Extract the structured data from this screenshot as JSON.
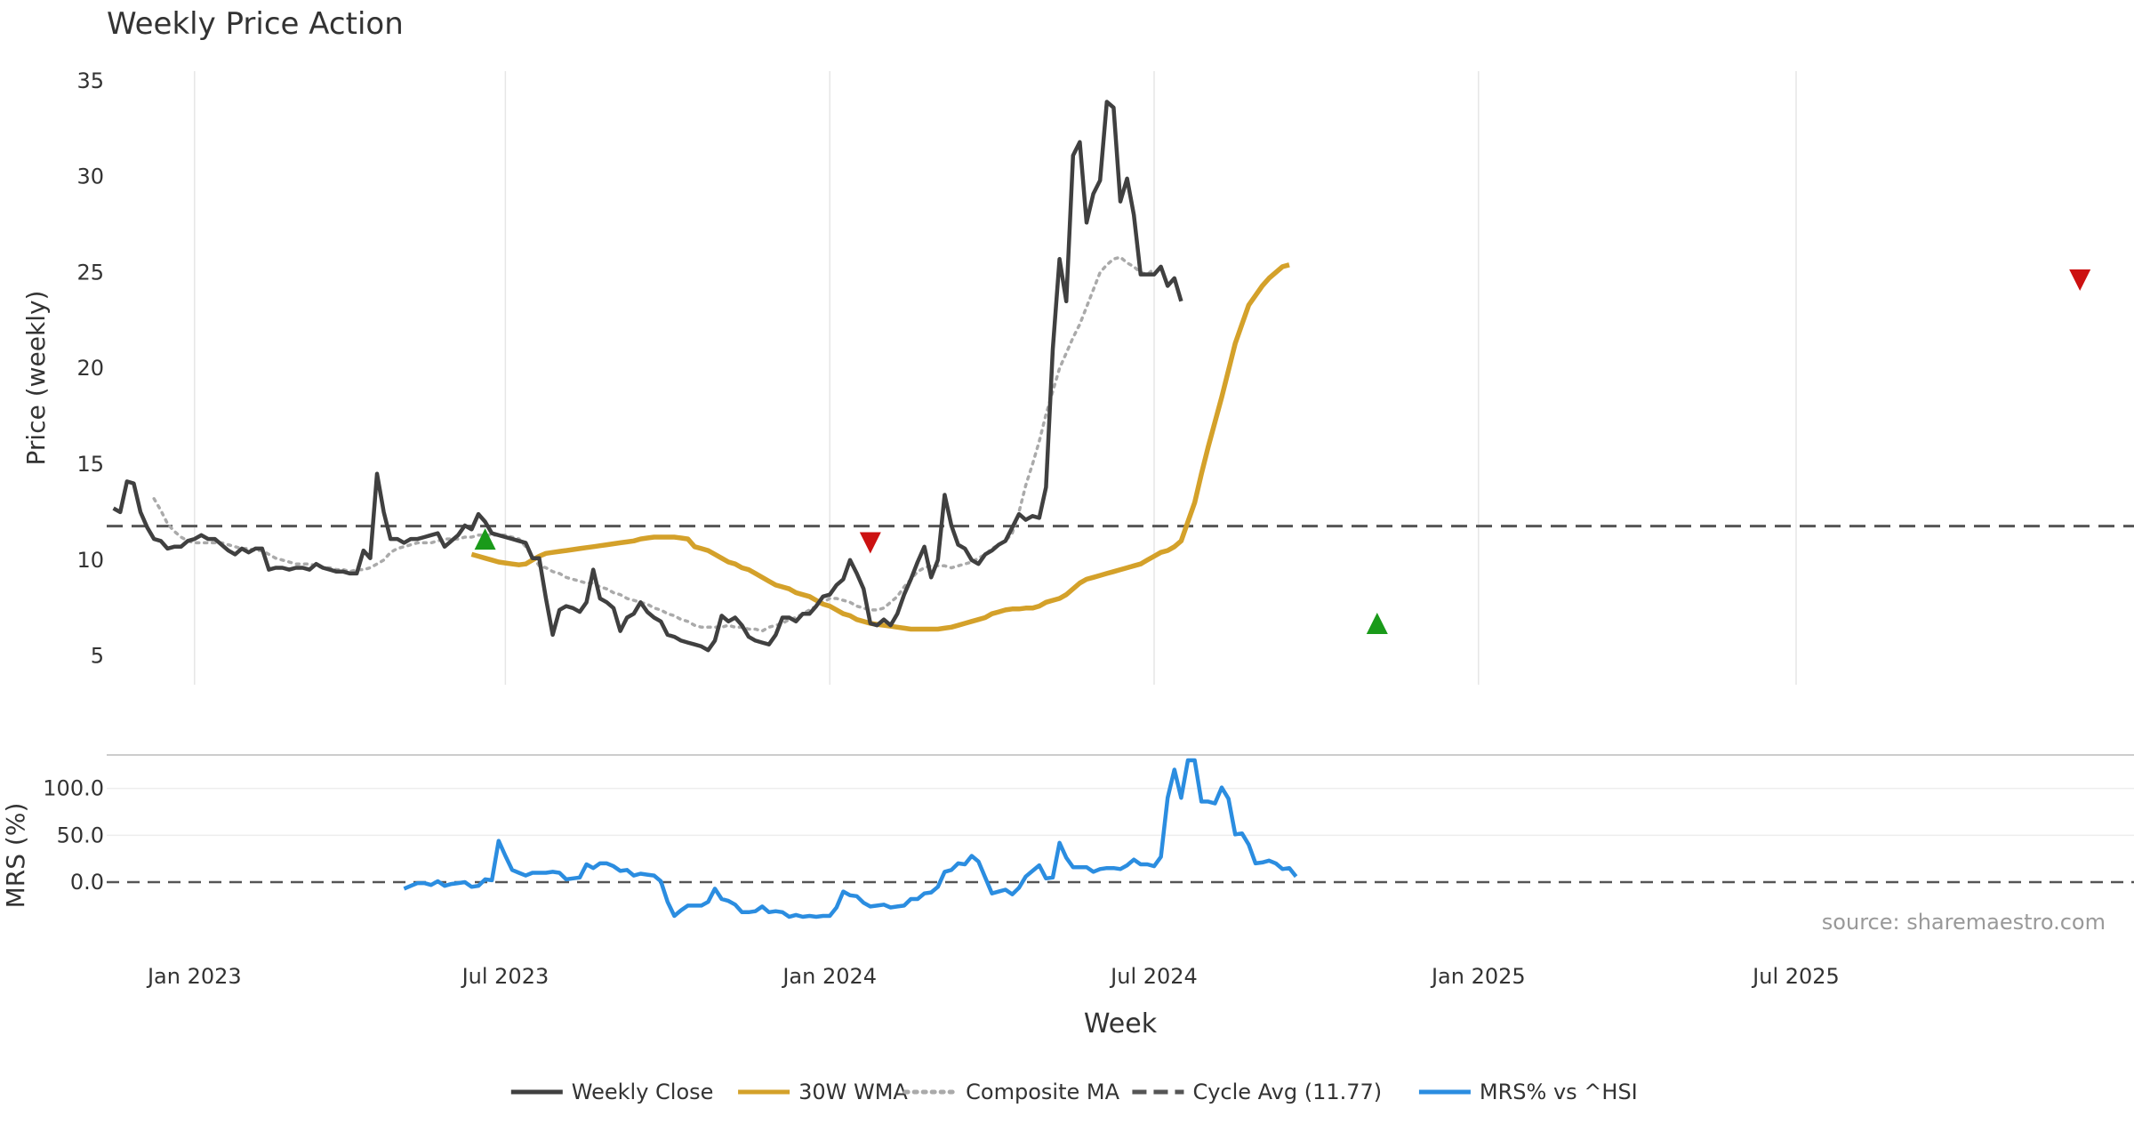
{
  "chart_data": [
    {
      "type": "line",
      "panel": "price",
      "title": "Weekly Price Action",
      "xlabel": "Week",
      "ylabel": "Price (weekly)",
      "ylim": [
        3.5,
        35.5
      ],
      "yticks": [
        5,
        10,
        15,
        20,
        25,
        30,
        35
      ],
      "x_tick_labels": [
        "Jan 2023",
        "Jul 2023",
        "Jan 2024",
        "Jul 2024",
        "Jan 2025",
        "Jul 2025"
      ],
      "x_tick_weeks": [
        8,
        54,
        102,
        150,
        198,
        245
      ],
      "x_range": [
        -5,
        295
      ],
      "grid": true,
      "cycle_avg": 11.77,
      "series": [
        {
          "name": "Weekly Close",
          "color": "#404040",
          "x_start": -4,
          "values": [
            12.7,
            12.5,
            14.1,
            14.0,
            12.5,
            11.7,
            11.1,
            11.0,
            10.6,
            10.7,
            10.7,
            11.0,
            11.1,
            11.3,
            11.1,
            11.1,
            10.8,
            10.5,
            10.3,
            10.6,
            10.4,
            10.6,
            10.6,
            9.5,
            9.6,
            9.6,
            9.5,
            9.6,
            9.6,
            9.5,
            9.8,
            9.6,
            9.5,
            9.4,
            9.4,
            9.3,
            9.3,
            10.5,
            10.1,
            14.5,
            12.5,
            11.1,
            11.1,
            10.9,
            11.1,
            11.1,
            11.2,
            11.3,
            11.4,
            10.7,
            11.0,
            11.3,
            11.8,
            11.6,
            12.4,
            12.0,
            11.4,
            11.3,
            11.2,
            11.1,
            11.0,
            10.9,
            10.1,
            10.1,
            8.0,
            6.1,
            7.4,
            7.6,
            7.5,
            7.3,
            7.8,
            9.5,
            8.0,
            7.8,
            7.5,
            6.3,
            7.0,
            7.2,
            7.8,
            7.3,
            7.0,
            6.8,
            6.1,
            6.0,
            5.8,
            5.7,
            5.6,
            5.5,
            5.3,
            5.8,
            7.1,
            6.8,
            7.0,
            6.6,
            6.0,
            5.8,
            5.7,
            5.6,
            6.1,
            7.0,
            7.0,
            6.8,
            7.2,
            7.2,
            7.6,
            8.1,
            8.2,
            8.7,
            9.0,
            10.0,
            9.3,
            8.5,
            6.7,
            6.6,
            6.9,
            6.6,
            7.2,
            8.2,
            9.0,
            9.9,
            10.7,
            9.1,
            10.0,
            13.4,
            11.8,
            10.8,
            10.6,
            10.0,
            9.8,
            10.3,
            10.5,
            10.8,
            11.0,
            11.7,
            12.4,
            12.1,
            12.3,
            12.2,
            13.8,
            21.0,
            25.7,
            23.5,
            31.1,
            31.8,
            27.6,
            29.1,
            29.8,
            33.9,
            33.6,
            28.7,
            29.9,
            28.0,
            24.9,
            24.9,
            24.9,
            25.3,
            24.3,
            24.7,
            23.5
          ]
        },
        {
          "name": "30W WMA",
          "color": "#d4a12a",
          "x_start": 49,
          "values": [
            10.3,
            10.2,
            10.1,
            10.0,
            9.9,
            9.85,
            9.8,
            9.75,
            9.8,
            10.0,
            10.2,
            10.35,
            10.4,
            10.45,
            10.5,
            10.55,
            10.6,
            10.65,
            10.7,
            10.75,
            10.8,
            10.85,
            10.9,
            10.95,
            11.0,
            11.1,
            11.15,
            11.2,
            11.2,
            11.2,
            11.2,
            11.15,
            11.1,
            10.7,
            10.6,
            10.5,
            10.3,
            10.1,
            9.9,
            9.8,
            9.6,
            9.5,
            9.3,
            9.1,
            8.9,
            8.7,
            8.6,
            8.5,
            8.3,
            8.2,
            8.1,
            7.9,
            7.7,
            7.6,
            7.4,
            7.2,
            7.1,
            6.9,
            6.8,
            6.7,
            6.65,
            6.6,
            6.55,
            6.5,
            6.45,
            6.4,
            6.4,
            6.4,
            6.4,
            6.4,
            6.45,
            6.5,
            6.6,
            6.7,
            6.8,
            6.9,
            7.0,
            7.2,
            7.3,
            7.4,
            7.45,
            7.45,
            7.5,
            7.5,
            7.6,
            7.8,
            7.9,
            8.0,
            8.2,
            8.5,
            8.8,
            9.0,
            9.1,
            9.2,
            9.3,
            9.4,
            9.5,
            9.6,
            9.7,
            9.8,
            10.0,
            10.2,
            10.4,
            10.5,
            10.7,
            11.0,
            12.0,
            13.0,
            14.5,
            15.9,
            17.2,
            18.5,
            19.9,
            21.3,
            22.3,
            23.3,
            23.8,
            24.3,
            24.7,
            25.0,
            25.3,
            25.4
          ]
        },
        {
          "name": "Composite MA",
          "color": "#aaaaaa",
          "x_start": 2,
          "values": [
            13.2,
            12.6,
            11.9,
            11.5,
            11.2,
            11.0,
            10.9,
            10.9,
            10.9,
            10.9,
            10.9,
            10.8,
            10.7,
            10.6,
            10.6,
            10.5,
            10.5,
            10.3,
            10.1,
            10.0,
            9.9,
            9.8,
            9.8,
            9.8,
            9.7,
            9.6,
            9.6,
            9.5,
            9.5,
            9.4,
            9.5,
            9.5,
            9.6,
            9.8,
            10.0,
            10.4,
            10.6,
            10.7,
            10.8,
            10.9,
            10.9,
            10.9,
            11.0,
            11.1,
            11.1,
            11.1,
            11.2,
            11.2,
            11.3,
            11.3,
            11.3,
            11.3,
            11.3,
            11.2,
            11.1,
            10.7,
            10.2,
            9.7,
            9.6,
            9.4,
            9.3,
            9.1,
            9.0,
            8.9,
            8.8,
            8.8,
            8.6,
            8.5,
            8.3,
            8.2,
            8.0,
            7.9,
            7.8,
            7.7,
            7.5,
            7.4,
            7.2,
            7.1,
            6.9,
            6.8,
            6.6,
            6.5,
            6.5,
            6.5,
            6.5,
            6.6,
            6.5,
            6.5,
            6.4,
            6.4,
            6.3,
            6.5,
            6.6,
            6.7,
            6.9,
            7.0,
            7.2,
            7.4,
            7.6,
            7.8,
            8.0,
            8.0,
            7.9,
            7.8,
            7.6,
            7.5,
            7.4,
            7.4,
            7.5,
            7.8,
            8.1,
            8.6,
            9.0,
            9.4,
            9.6,
            9.7,
            9.7,
            9.7,
            9.6,
            9.7,
            9.8,
            9.9,
            10.1,
            10.3,
            10.6,
            10.8,
            11.0,
            11.4,
            12.5,
            13.9,
            15.0,
            16.2,
            17.6,
            18.8,
            20.0,
            20.8,
            21.6,
            22.3,
            23.2,
            24.1,
            25.0,
            25.4,
            25.7,
            25.8,
            25.5,
            25.3,
            25.0,
            24.9,
            25.2
          ]
        }
      ],
      "markers": [
        {
          "type": "buy",
          "week": 51,
          "value": 11.1,
          "color": "#1a9a1a"
        },
        {
          "type": "sell",
          "week": 108,
          "value": 10.9,
          "color": "#cc1111"
        },
        {
          "type": "buy",
          "week": 183,
          "value": 6.7,
          "color": "#1a9a1a"
        },
        {
          "type": "sell",
          "week": 287,
          "value": 24.6,
          "color": "#cc1111"
        }
      ]
    },
    {
      "type": "line",
      "panel": "mrs",
      "ylabel": "MRS (%)",
      "ylim": [
        -55,
        130
      ],
      "yticks": [
        0.0,
        50.0,
        100.0
      ],
      "ytick_labels": [
        "0.0",
        "50.0",
        "100.0"
      ],
      "zero_line": 0,
      "source": "source: sharemaestro.com",
      "series": [
        {
          "name": "MRS% vs ^HSI",
          "color": "#2b8de0",
          "x_start": 39,
          "values": [
            -7,
            -4,
            -1,
            -1,
            -3,
            1,
            -4,
            -2,
            -1,
            0,
            -5,
            -4,
            3,
            2,
            44,
            28,
            13,
            10,
            7,
            10,
            10,
            10,
            11,
            10,
            3,
            4,
            5,
            19,
            15,
            20,
            20,
            17,
            12,
            13,
            7,
            9,
            8,
            7,
            1,
            -21,
            -36,
            -30,
            -25,
            -25,
            -25,
            -21,
            -7,
            -18,
            -20,
            -24,
            -32,
            -32,
            -31,
            -26,
            -32,
            -31,
            -32,
            -37,
            -35,
            -37,
            -36,
            -37,
            -36,
            -36,
            -27,
            -10,
            -14,
            -15,
            -22,
            -26,
            -25,
            -24,
            -27,
            -26,
            -25,
            -18,
            -18,
            -12,
            -11,
            -5,
            11,
            13,
            20,
            19,
            28,
            22,
            5,
            -12,
            -10,
            -8,
            -13,
            -6,
            6,
            12,
            18,
            4,
            5,
            42,
            26,
            16,
            16,
            16,
            11,
            14,
            15,
            15,
            14,
            18,
            24,
            19,
            19,
            17,
            27,
            90,
            120,
            90,
            130,
            130,
            86,
            86,
            84,
            101,
            89,
            51,
            52,
            40,
            20,
            21,
            23,
            20,
            14,
            15,
            6
          ]
        }
      ]
    }
  ],
  "legend": {
    "items": [
      {
        "label": "Weekly Close",
        "color": "#404040",
        "style": "solid"
      },
      {
        "label": "30W WMA",
        "color": "#d4a12a",
        "style": "solid"
      },
      {
        "label": "Composite MA",
        "color": "#aaaaaa",
        "style": "dotted"
      },
      {
        "label": "Cycle Avg (11.77)",
        "color": "#555555",
        "style": "dashed"
      },
      {
        "label": "MRS% vs ^HSI",
        "color": "#2b8de0",
        "style": "solid"
      }
    ]
  }
}
